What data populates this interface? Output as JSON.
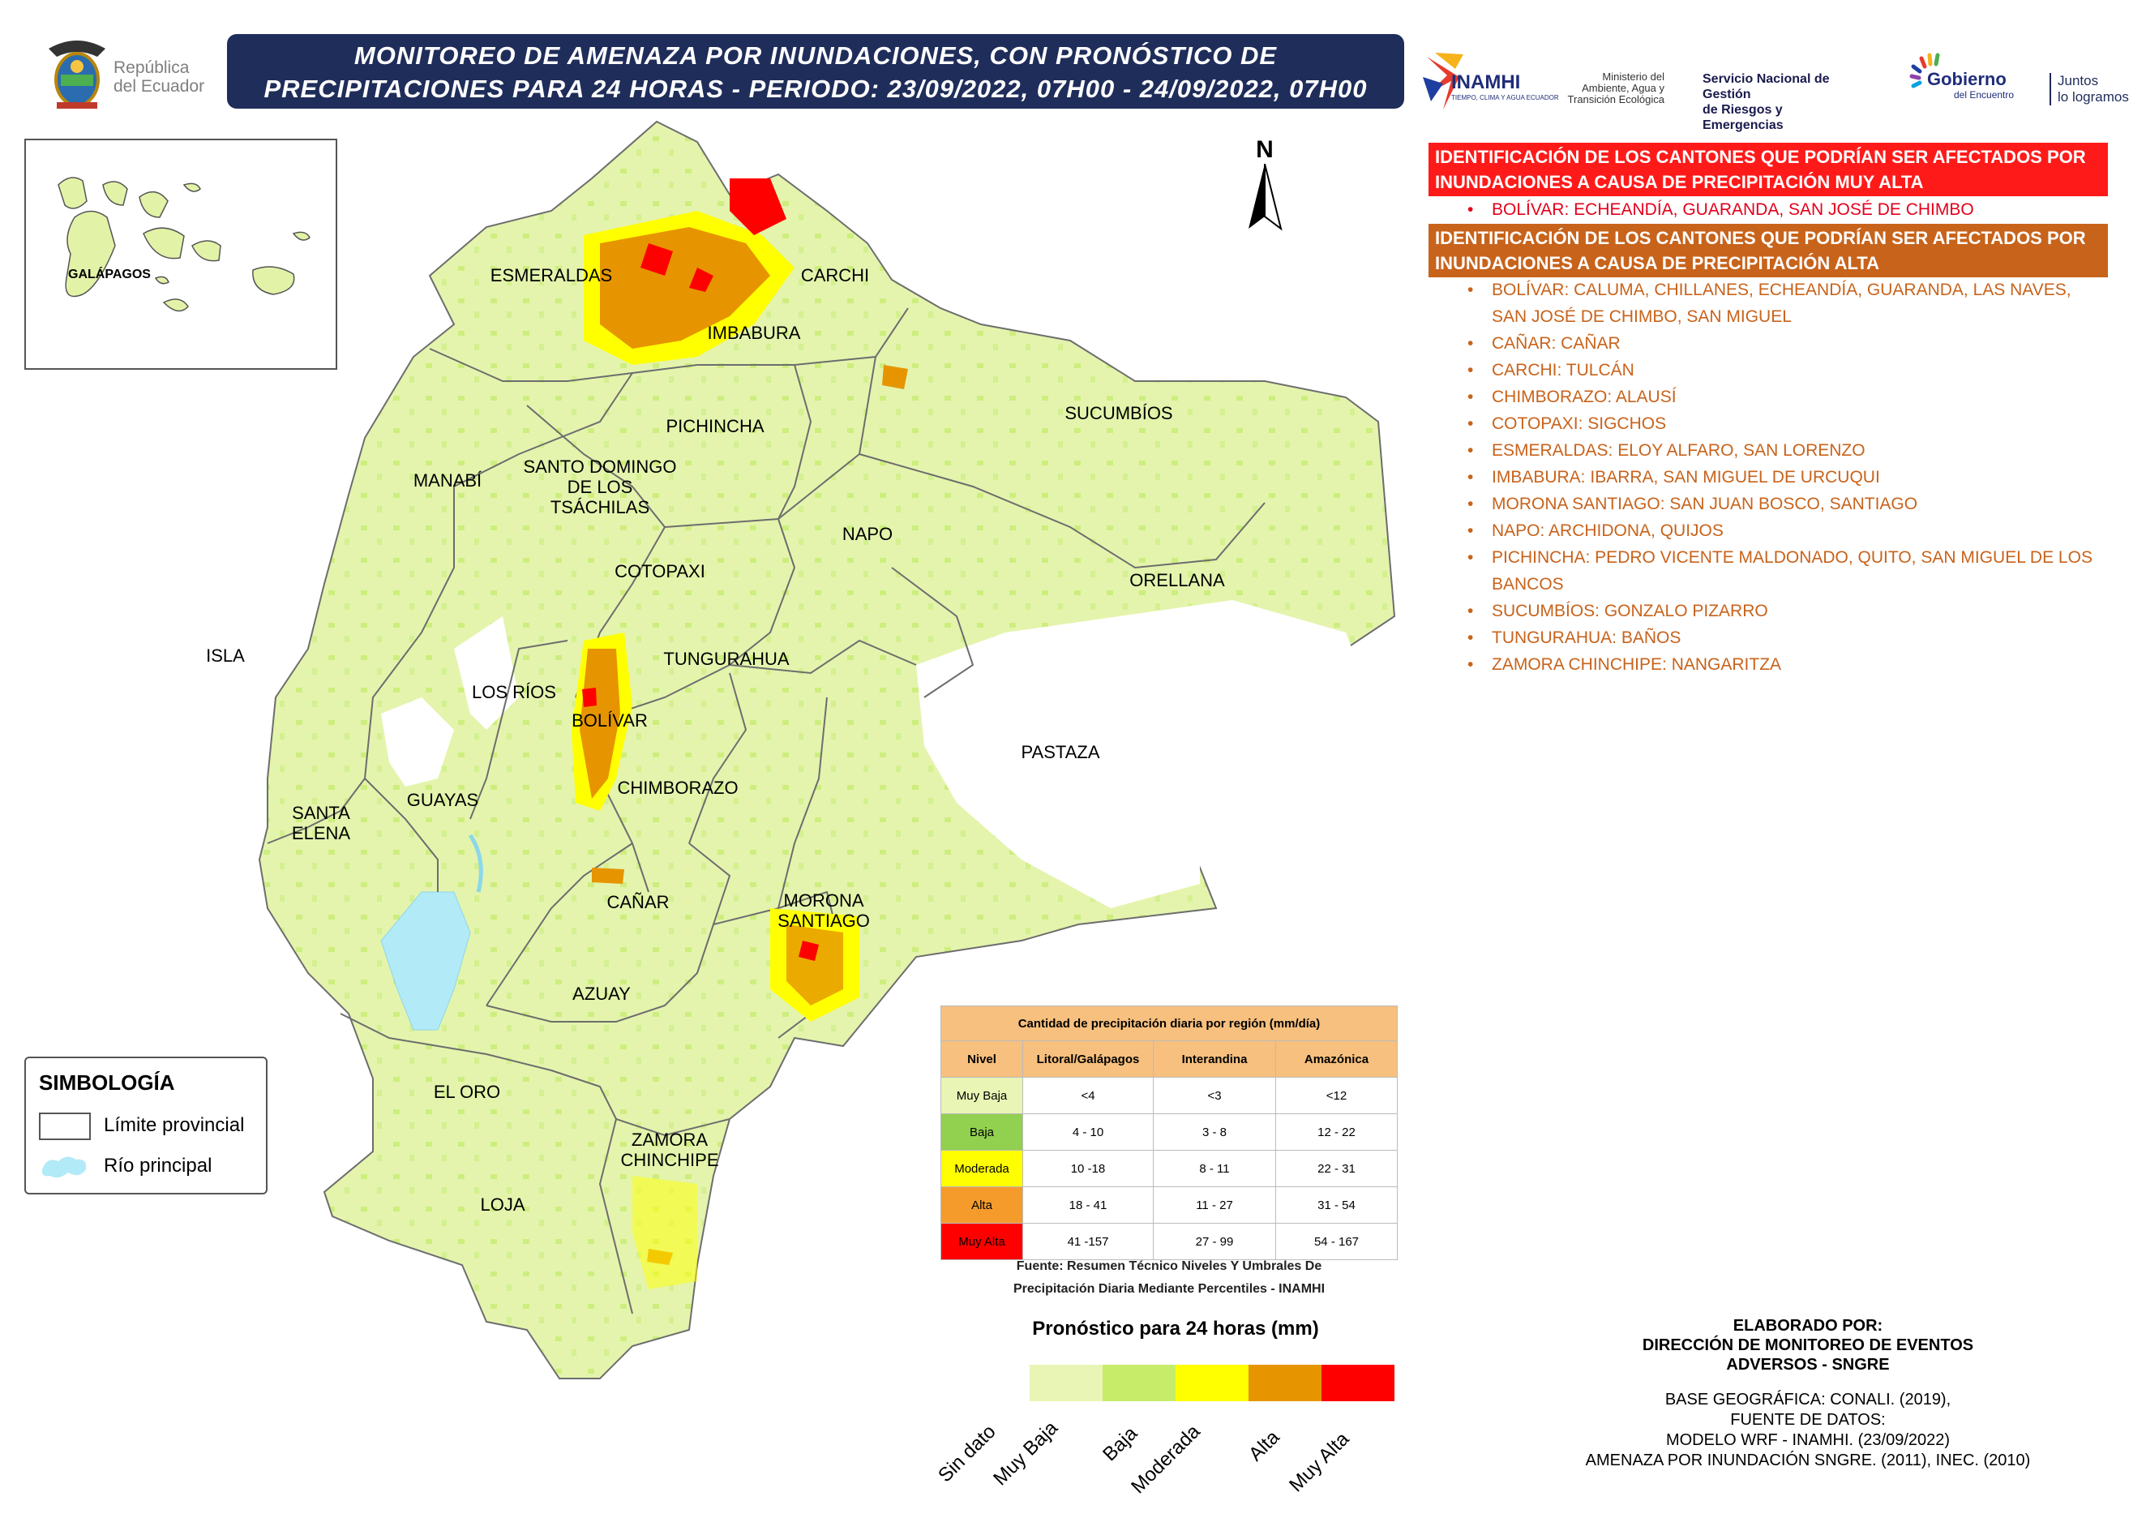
{
  "header": {
    "title_line1": "MONITOREO DE AMENAZA POR INUNDACIONES, CON PRONÓSTICO DE",
    "title_line2": "PRECIPITACIONES  PARA 24  HORAS - PERIODO: 23/09/2022, 07H00 - 24/09/2022, 07H00",
    "colors": {
      "title_bg": "#1f2d5a",
      "title_text": "#ffffff"
    }
  },
  "logos": {
    "republica_line1": "República",
    "republica_line2": "del Ecuador",
    "inamhi": "INAMHI",
    "inamhi_sub": "TIEMPO, CLIMA Y AGUA ECUADOR",
    "ministerio_line1": "Ministerio del",
    "ministerio_line2": "Ambiente, Agua y",
    "ministerio_line3": "Transición Ecológica",
    "sngre_line1": "Servicio Nacional de Gestión",
    "sngre_line2": "de Riesgos y Emergencias",
    "gobierno": "Gobierno",
    "gobierno_sub": "del Encuentro",
    "juntos_line1": "Juntos",
    "juntos_line2": "lo logramos"
  },
  "map": {
    "north_label": "N",
    "galapagos_label": "GALÁPAGOS",
    "provinces": {
      "esmeraldas": "ESMERALDAS",
      "carchi": "CARCHI",
      "imbabura": "IMBABURA",
      "sucumbios": "SUCUMBÍOS",
      "pichincha": "PICHINCHA",
      "manabi": "MANABÍ",
      "santo_domingo_1": "SANTO DOMINGO",
      "santo_domingo_2": "DE LOS",
      "santo_domingo_3": "TSÁCHILAS",
      "napo": "NAPO",
      "orellana": "ORELLANA",
      "cotopaxi": "COTOPAXI",
      "isla": "ISLA",
      "tungurahua": "TUNGURAHUA",
      "los_rios": "LOS RÍOS",
      "bolivar": "BOLÍVAR",
      "pastaza": "PASTAZA",
      "chimborazo": "CHIMBORAZO",
      "santa_elena_1": "SANTA",
      "santa_elena_2": "ELENA",
      "guayas": "GUAYAS",
      "canar": "CAÑAR",
      "morona_1": "MORONA",
      "morona_2": "SANTIAGO",
      "azuay": "AZUAY",
      "el_oro": "EL ORO",
      "zamora_1": "ZAMORA",
      "zamora_2": "CHINCHIPE",
      "loja": "LOJA"
    },
    "colors": {
      "muy_baja": "#e8f5b5",
      "baja": "#c6ec6a",
      "moderada": "#ffff00",
      "alta": "#e69500",
      "muy_alta": "#ff0000",
      "river": "#b3eaf7"
    }
  },
  "muy_alta_section": {
    "header_line1": "IDENTIFICACIÓN DE LOS CANTONES QUE PODRÍAN SER AFECTADOS POR",
    "header_line2": "INUNDACIONES A CAUSA DE  PRECIPITACIÓN MUY ALTA",
    "items": [
      "BOLÍVAR: ECHEANDÍA, GUARANDA, SAN JOSÉ DE CHIMBO"
    ]
  },
  "alta_section": {
    "header_line1": "IDENTIFICACIÓN DE LOS CANTONES QUE PODRÍAN SER AFECTADOS POR",
    "header_line2": "INUNDACIONES A CAUSA DE  PRECIPITACIÓN  ALTA",
    "items": [
      "BOLÍVAR: CALUMA, CHILLANES, ECHEANDÍA, GUARANDA, LAS NAVES, SAN JOSÉ DE CHIMBO, SAN MIGUEL",
      "CAÑAR: CAÑAR",
      "CARCHI: TULCÁN",
      "CHIMBORAZO: ALAUSÍ",
      "COTOPAXI: SIGCHOS",
      "ESMERALDAS: ELOY ALFARO, SAN LORENZO",
      "IMBABURA: IBARRA, SAN MIGUEL DE URCUQUI",
      "MORONA SANTIAGO: SAN JUAN BOSCO, SANTIAGO",
      "NAPO: ARCHIDONA, QUIJOS",
      "PICHINCHA: PEDRO VICENTE MALDONADO, QUITO, SAN MIGUEL DE LOS BANCOS",
      "SUCUMBÍOS: GONZALO PIZARRO",
      "TUNGURAHUA: BAÑOS",
      "ZAMORA CHINCHIPE: NANGARITZA"
    ]
  },
  "simbologia": {
    "title": "SIMBOLOGÍA",
    "limite": "Límite provincial",
    "rio": "Río principal"
  },
  "precip_table": {
    "title": "Cantidad de precipitación diaria por región (mm/día)",
    "headers": [
      "Nivel",
      "Litoral/Galápagos",
      "Interandina",
      "Amazónica"
    ],
    "rows": [
      {
        "nivel": "Muy Baja",
        "litoral": "<4",
        "interandina": "<3",
        "amazonica": "<12",
        "color": "#e8f5b5"
      },
      {
        "nivel": "Baja",
        "litoral": "4 - 10",
        "interandina": "3 - 8",
        "amazonica": "12 - 22",
        "color": "#92d050"
      },
      {
        "nivel": "Moderada",
        "litoral": "10 -18",
        "interandina": "8 - 11",
        "amazonica": "22 - 31",
        "color": "#ffff00"
      },
      {
        "nivel": "Alta",
        "litoral": "18 - 41",
        "interandina": "11 - 27",
        "amazonica": "31 - 54",
        "color": "#f59b2c"
      },
      {
        "nivel": "Muy Alta",
        "litoral": "41 -157",
        "interandina": "27 - 99",
        "amazonica": "54 - 167",
        "color": "#ff0000"
      }
    ],
    "source_line1": "Fuente: Resumen Técnico Niveles Y Umbrales De",
    "source_line2": "Precipitación Diaria Mediante Percentiles - INAMHI"
  },
  "colorbar": {
    "title": "Pronóstico para 24 horas (mm)",
    "labels": [
      "Sin dato",
      "Muy Baja",
      "Baja",
      "Moderada",
      "Alta",
      "Muy Alta"
    ],
    "colors": [
      "#e8f5b5",
      "#c6ec6a",
      "#ffff00",
      "#e69500",
      "#ff0000"
    ]
  },
  "credits": {
    "elaborado_1": "ELABORADO POR:",
    "elaborado_2": "DIRECCIÓN DE MONITOREO DE EVENTOS",
    "elaborado_3": "ADVERSOS - SNGRE",
    "base_1": "BASE GEOGRÁFICA: CONALI. (2019),",
    "base_2": "FUENTE DE DATOS:",
    "base_3": "MODELO WRF - INAMHI. (23/09/2022)",
    "base_4": "AMENAZA POR INUNDACIÓN SNGRE. (2011), INEC. (2010)"
  }
}
